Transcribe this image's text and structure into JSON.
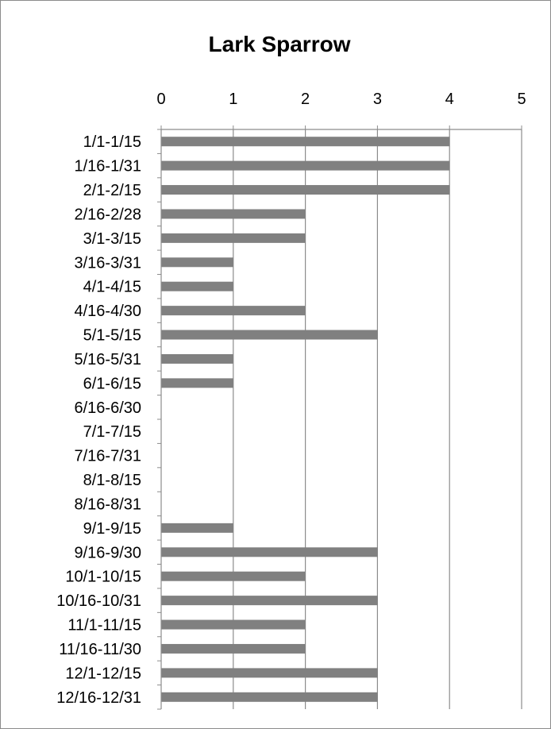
{
  "chart_data": {
    "type": "bar",
    "orientation": "horizontal",
    "title": "Lark Sparrow",
    "xlabel": "",
    "ylabel": "",
    "xlim": [
      0,
      5
    ],
    "ticks": [
      "0",
      "1",
      "2",
      "3",
      "4",
      "5"
    ],
    "grid": true,
    "legend": "none",
    "bar_color": "#808080",
    "categories": [
      "1/1-1/15",
      "1/16-1/31",
      "2/1-2/15",
      "2/16-2/28",
      "3/1-3/15",
      "3/16-3/31",
      "4/1-4/15",
      "4/16-4/30",
      "5/1-5/15",
      "5/16-5/31",
      "6/1-6/15",
      "6/16-6/30",
      "7/1-7/15",
      "7/16-7/31",
      "8/1-8/15",
      "8/16-8/31",
      "9/1-9/15",
      "9/16-9/30",
      "10/1-10/15",
      "10/16-10/31",
      "11/1-11/15",
      "11/16-11/30",
      "12/1-12/15",
      "12/16-12/31"
    ],
    "values": [
      4,
      4,
      4,
      2,
      2,
      1,
      1,
      2,
      3,
      1,
      1,
      0,
      0,
      0,
      0,
      0,
      1,
      3,
      2,
      3,
      2,
      2,
      3,
      3
    ]
  }
}
